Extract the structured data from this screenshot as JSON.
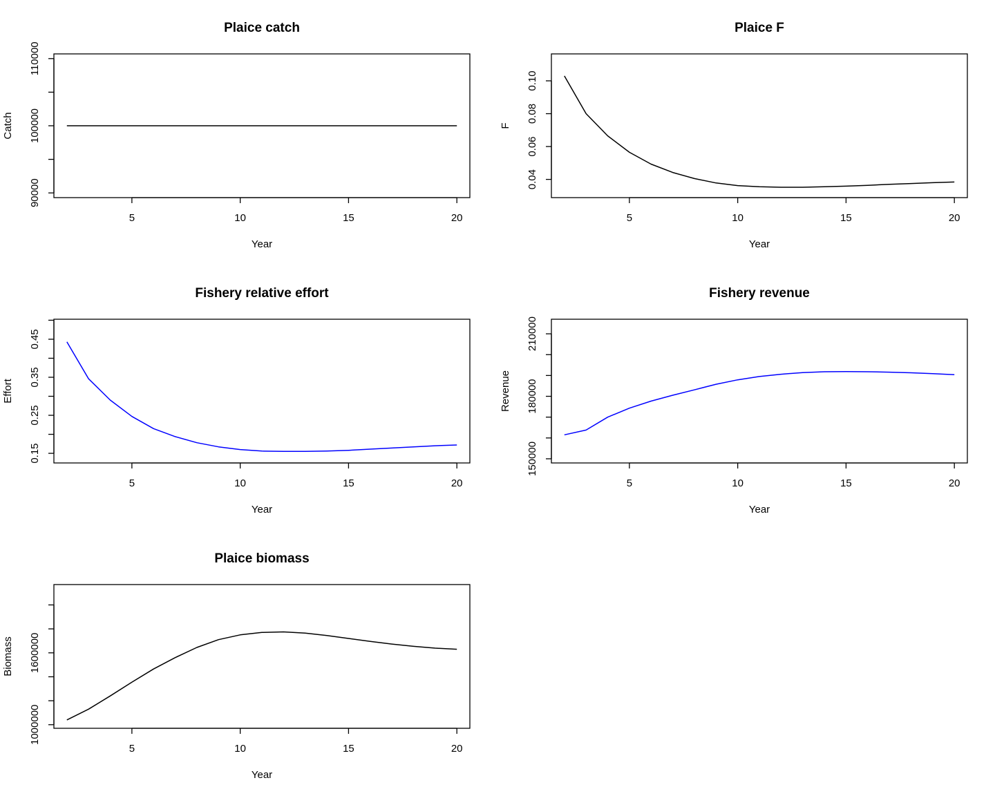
{
  "chart_data": [
    {
      "id": "plaice-catch",
      "type": "line",
      "title": "Plaice catch",
      "xlabel": "Year",
      "ylabel": "Catch",
      "color": "#000000",
      "xlim": [
        1.4,
        20.6
      ],
      "ylim": [
        89300,
        110700
      ],
      "xticks": [
        5,
        10,
        15,
        20
      ],
      "xtick_labels": [
        "5",
        "10",
        "15",
        "20"
      ],
      "yticks": [
        90000,
        95000,
        100000,
        105000,
        110000
      ],
      "ytick_labels": [
        "90000",
        "",
        "100000",
        "",
        "110000"
      ],
      "x": [
        2,
        3,
        4,
        5,
        6,
        7,
        8,
        9,
        10,
        11,
        12,
        13,
        14,
        15,
        16,
        17,
        18,
        19,
        20
      ],
      "y": [
        100000,
        100000,
        100000,
        100000,
        100000,
        100000,
        100000,
        100000,
        100000,
        100000,
        100000,
        100000,
        100000,
        100000,
        100000,
        100000,
        100000,
        100000,
        100000
      ]
    },
    {
      "id": "plaice-f",
      "type": "line",
      "title": "Plaice F",
      "xlabel": "Year",
      "ylabel": "F",
      "color": "#000000",
      "xlim": [
        1.4,
        20.6
      ],
      "ylim": [
        0.0289,
        0.1164
      ],
      "xticks": [
        5,
        10,
        15,
        20
      ],
      "xtick_labels": [
        "5",
        "10",
        "15",
        "20"
      ],
      "yticks": [
        0.04,
        0.06,
        0.08,
        0.1
      ],
      "ytick_labels": [
        "0.04",
        "0.06",
        "0.08",
        "0.10"
      ],
      "x": [
        2,
        3,
        4,
        5,
        6,
        7,
        8,
        9,
        10,
        11,
        12,
        13,
        14,
        15,
        16,
        17,
        18,
        19,
        20
      ],
      "y": [
        0.103,
        0.08,
        0.0665,
        0.0565,
        0.0493,
        0.0442,
        0.0405,
        0.0378,
        0.0362,
        0.0355,
        0.0352,
        0.0352,
        0.0355,
        0.0359,
        0.0364,
        0.037,
        0.0375,
        0.038,
        0.0384
      ]
    },
    {
      "id": "fishery-relative-effort",
      "type": "line",
      "title": "Fishery relative effort",
      "xlabel": "Year",
      "ylabel": "Effort",
      "color": "#0000ff",
      "xlim": [
        1.4,
        20.6
      ],
      "ylim": [
        0.1247,
        0.5026
      ],
      "xticks": [
        5,
        10,
        15,
        20
      ],
      "xtick_labels": [
        "5",
        "10",
        "15",
        "20"
      ],
      "yticks": [
        0.15,
        0.2,
        0.25,
        0.3,
        0.35,
        0.4,
        0.45,
        0.5
      ],
      "ytick_labels": [
        "0.15",
        "",
        "0.25",
        "",
        "0.35",
        "",
        "0.45",
        ""
      ],
      "x": [
        2,
        3,
        4,
        5,
        6,
        7,
        8,
        9,
        10,
        11,
        12,
        13,
        14,
        15,
        16,
        17,
        18,
        19,
        20
      ],
      "y": [
        0.443,
        0.346,
        0.29,
        0.247,
        0.215,
        0.194,
        0.178,
        0.167,
        0.16,
        0.156,
        0.155,
        0.155,
        0.156,
        0.158,
        0.161,
        0.164,
        0.167,
        0.17,
        0.172
      ]
    },
    {
      "id": "fishery-revenue",
      "type": "line",
      "title": "Fishery revenue",
      "xlabel": "Year",
      "ylabel": "Revenue",
      "color": "#0000ff",
      "xlim": [
        1.4,
        20.6
      ],
      "ylim": [
        148000,
        217000
      ],
      "xticks": [
        5,
        10,
        15,
        20
      ],
      "xtick_labels": [
        "5",
        "10",
        "15",
        "20"
      ],
      "yticks": [
        150000,
        160000,
        170000,
        180000,
        190000,
        200000,
        210000
      ],
      "ytick_labels": [
        "150000",
        "",
        "",
        "180000",
        "",
        "",
        "210000"
      ],
      "x": [
        2,
        3,
        4,
        5,
        6,
        7,
        8,
        9,
        10,
        11,
        12,
        13,
        14,
        15,
        16,
        17,
        18,
        19,
        20
      ],
      "y": [
        161500,
        163800,
        170000,
        174300,
        177700,
        180500,
        183100,
        185800,
        187900,
        189500,
        190600,
        191400,
        191800,
        191900,
        191800,
        191600,
        191300,
        190900,
        190400
      ]
    },
    {
      "id": "plaice-biomass",
      "type": "line",
      "title": "Plaice biomass",
      "xlabel": "Year",
      "ylabel": "Biomass",
      "color": "#000000",
      "xlim": [
        1.4,
        20.6
      ],
      "ylim": [
        970000,
        2170000
      ],
      "xticks": [
        5,
        10,
        15,
        20
      ],
      "xtick_labels": [
        "5",
        "10",
        "15",
        "20"
      ],
      "yticks": [
        1000000,
        1200000,
        1400000,
        1600000,
        1800000,
        2000000
      ],
      "ytick_labels": [
        "1000000",
        "",
        "",
        "1600000",
        "",
        ""
      ],
      "x": [
        2,
        3,
        4,
        5,
        6,
        7,
        8,
        9,
        10,
        11,
        12,
        13,
        14,
        15,
        16,
        17,
        18,
        19,
        20
      ],
      "y": [
        1040000,
        1130000,
        1240000,
        1355000,
        1465000,
        1560000,
        1645000,
        1710000,
        1750000,
        1770000,
        1775000,
        1765000,
        1745000,
        1720000,
        1695000,
        1673000,
        1654000,
        1639000,
        1630000
      ]
    }
  ]
}
